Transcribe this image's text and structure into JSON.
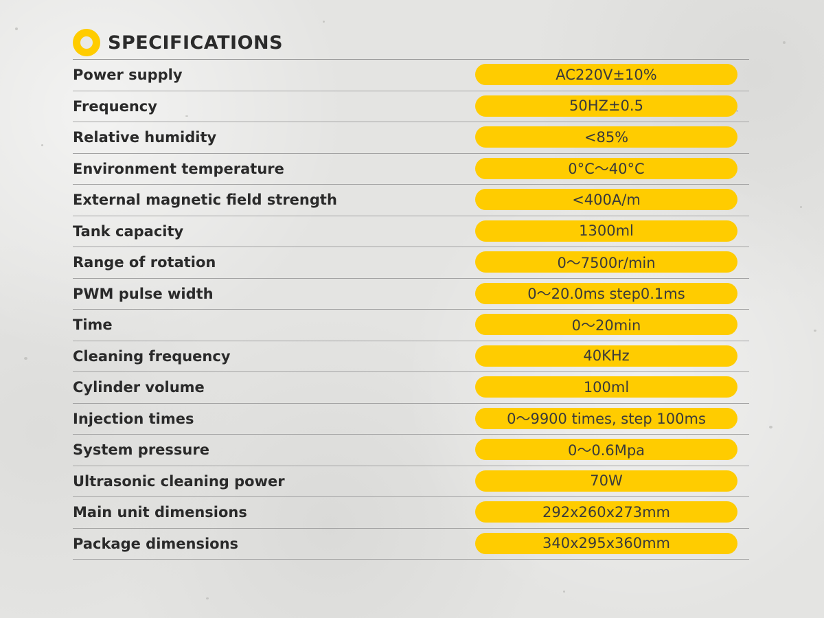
{
  "header": {
    "title": "SPECIFICATIONS",
    "icon": "ring-icon",
    "accent_color": "#ffcc00"
  },
  "specs": [
    {
      "label": "Power supply",
      "value": "AC220V±10%"
    },
    {
      "label": "Frequency",
      "value": "50HZ±0.5"
    },
    {
      "label": "Relative humidity",
      "value": "<85%"
    },
    {
      "label": "Environment temperature",
      "value": "0°C〜40°C"
    },
    {
      "label": "External magnetic field strength",
      "value": "<400A/m"
    },
    {
      "label": "Tank capacity",
      "value": "1300ml"
    },
    {
      "label": "Range of rotation",
      "value": "0〜7500r/min"
    },
    {
      "label": "PWM pulse width",
      "value": "0〜20.0ms step0.1ms"
    },
    {
      "label": "Time",
      "value": "0〜20min"
    },
    {
      "label": "Cleaning frequency",
      "value": "40KHz"
    },
    {
      "label": "Cylinder volume",
      "value": "100ml"
    },
    {
      "label": "Injection times",
      "value": "0〜9900 times, step 100ms"
    },
    {
      "label": "System pressure",
      "value": "0〜0.6Mpa"
    },
    {
      "label": "Ultrasonic cleaning power",
      "value": "70W"
    },
    {
      "label": "Main unit dimensions",
      "value": "292x260x273mm"
    },
    {
      "label": "Package dimensions",
      "value": "340x295x360mm"
    }
  ]
}
